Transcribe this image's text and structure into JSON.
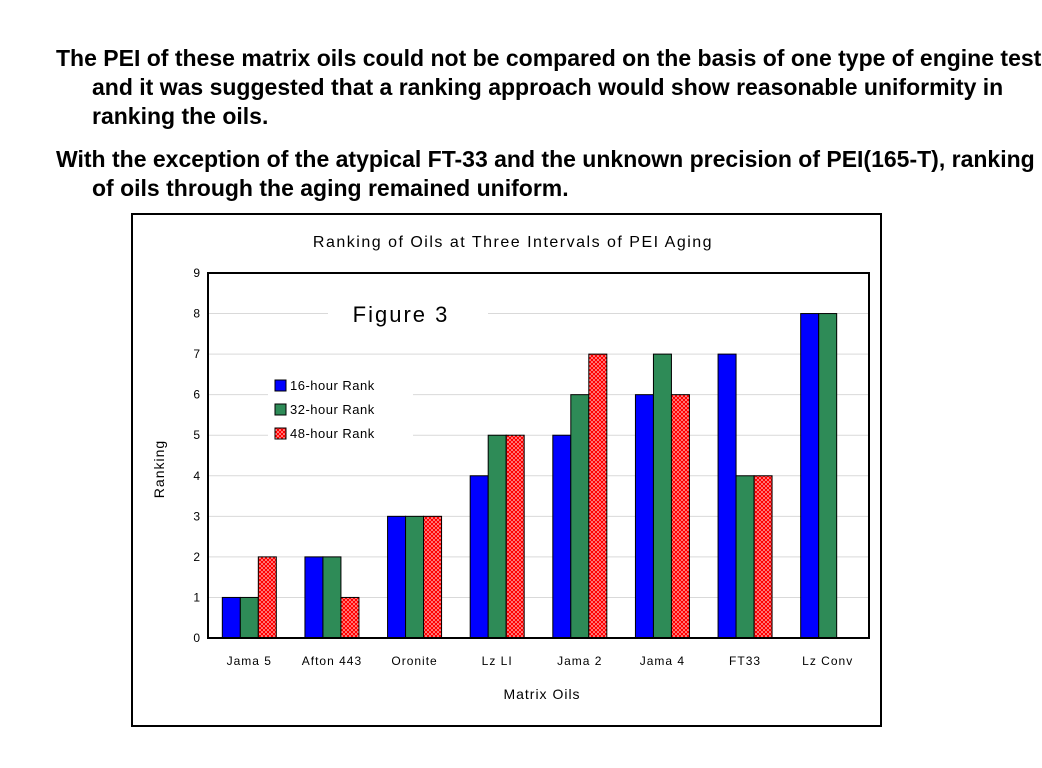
{
  "slide": {
    "paragraph_1": "The PEI of these matrix oils could not be compared on the basis of one type of engine test and it was suggested that a ranking approach would show reasonable uniformity in ranking the oils.",
    "paragraph_2": "With the exception of the atypical FT-33 and the unknown precision of PEI(165-T), ranking of oils through the aging remained uniform."
  },
  "chart_data": {
    "type": "bar",
    "title": "Ranking of Oils at Three Intervals of PEI Aging",
    "annotation": "Figure 3",
    "xlabel": "Matrix Oils",
    "ylabel": "Ranking",
    "ylim": [
      0,
      9
    ],
    "yticks": [
      "0",
      "1",
      "2",
      "3",
      "4",
      "5",
      "6",
      "7",
      "8",
      "9"
    ],
    "grid": true,
    "legend_position": "upper-left",
    "categories": [
      "Jama 5",
      "Afton 443",
      "Oronite",
      "Lz LI",
      "Jama 2",
      "Jama 4",
      "FT33",
      "Lz Conv"
    ],
    "series": [
      {
        "name": "16-hour Rank",
        "color": "#0000ff",
        "pattern": "solid",
        "values": [
          1,
          2,
          3,
          4,
          5,
          6,
          7,
          8
        ]
      },
      {
        "name": "32-hour Rank",
        "color": "#2e8b57",
        "pattern": "solid",
        "values": [
          1,
          2,
          3,
          5,
          6,
          7,
          4,
          8
        ]
      },
      {
        "name": "48-hour Rank",
        "color": "#ff0000",
        "pattern": "dotted",
        "values": [
          2,
          1,
          3,
          5,
          7,
          6,
          4,
          null
        ]
      }
    ]
  }
}
